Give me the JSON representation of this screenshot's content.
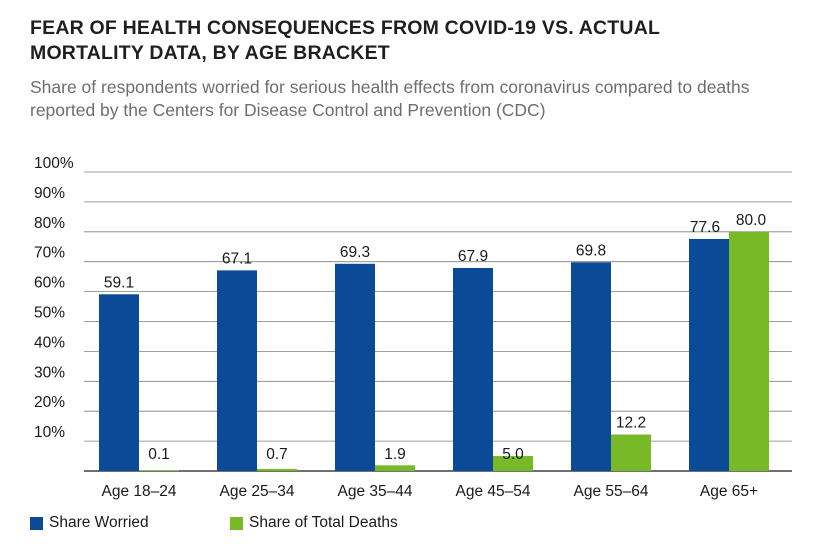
{
  "title": "FEAR OF HEALTH CONSEQUENCES FROM COVID-19 VS. ACTUAL MORTALITY DATA, BY AGE BRACKET",
  "subtitle": "Share of respondents worried for serious health effects from coronavirus compared to deaths reported by the Centers for Disease Control and Prevention (CDC)",
  "colors": {
    "worried": "#0b4a97",
    "deaths": "#78b928",
    "grid": "#7f7f7f",
    "axis": "#1a1a1a"
  },
  "chart_data": {
    "type": "bar",
    "title": "FEAR OF HEALTH CONSEQUENCES FROM COVID-19 VS. ACTUAL MORTALITY DATA, BY AGE BRACKET",
    "subtitle": "Share of respondents worried for serious health effects from coronavirus compared to deaths reported by the Centers for Disease Control and Prevention (CDC)",
    "xlabel": "",
    "ylabel": "",
    "ylim": [
      0,
      100
    ],
    "y_ticks": [
      "100%",
      "90%",
      "80%",
      "70%",
      "60%",
      "50%",
      "40%",
      "30%",
      "20%",
      "10%"
    ],
    "grid": true,
    "legend_position": "bottom-left",
    "categories": [
      "Age 18–24",
      "Age 25–34",
      "Age 35–44",
      "Age 45–54",
      "Age 55–64",
      "Age 65+"
    ],
    "series": [
      {
        "name": "Share Worried",
        "values": [
          59.1,
          67.1,
          69.3,
          67.9,
          69.8,
          77.6
        ],
        "labels": [
          "59.1",
          "67.1",
          "69.3",
          "67.9",
          "69.8",
          "77.6"
        ]
      },
      {
        "name": "Share of Total Deaths",
        "values": [
          0.1,
          0.7,
          1.9,
          5.0,
          12.2,
          80.0
        ],
        "labels": [
          "0.1",
          "0.7",
          "1.9",
          "5.0",
          "12.2",
          "80.0"
        ]
      }
    ]
  }
}
